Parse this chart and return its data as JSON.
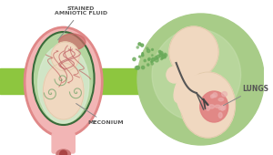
{
  "bg_color": "#ffffff",
  "green_band_color": "#8dc63f",
  "uterus_pink": "#f2b5b5",
  "uterus_dark_pink": "#e08888",
  "amniotic_green": "#b5d5a0",
  "amniotic_light": "#d8ead0",
  "fetus_skin": "#f0d8c0",
  "fetus_skin_dark": "#e0c8a8",
  "lung_pink": "#e08080",
  "lung_light": "#ebb0b0",
  "meconium_green": "#6aaa5a",
  "circle_bg": "#a8cc88",
  "circle_bg_light": "#c8e0b0",
  "text_color": "#555555",
  "line_color": "#888888",
  "cord_color": "#c87878",
  "dark_green": "#3a6a3a",
  "cervix_dark": "#cc7777",
  "label_stained": "STAINED\nAMNIOTIC FLUID",
  "label_meconium": "MECONIUM",
  "label_lungs": "LUNGS",
  "fs": 4.5
}
